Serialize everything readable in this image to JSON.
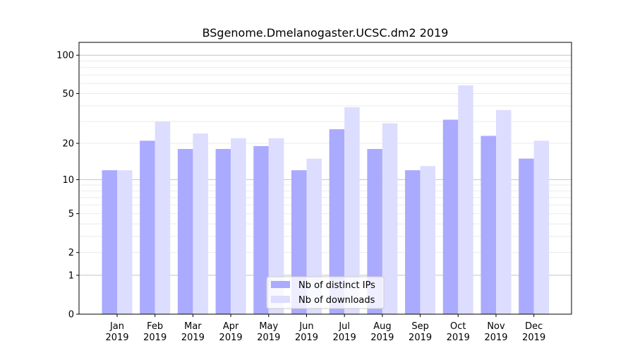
{
  "chart_data": {
    "type": "bar",
    "title": "BSgenome.Dmelanogaster.UCSC.dm2 2019",
    "categories": [
      "Jan 2019",
      "Feb 2019",
      "Mar 2019",
      "Apr 2019",
      "May 2019",
      "Jun 2019",
      "Jul 2019",
      "Aug 2019",
      "Sep 2019",
      "Oct 2019",
      "Nov 2019",
      "Dec 2019"
    ],
    "series": [
      {
        "name": "Nb of distinct IPs",
        "color": "#aaaaff",
        "values": [
          12,
          21,
          18,
          18,
          19,
          12,
          26,
          18,
          12,
          31,
          23,
          15
        ]
      },
      {
        "name": "Nb of downloads",
        "color": "#ddddff",
        "values": [
          12,
          30,
          24,
          22,
          22,
          15,
          39,
          29,
          13,
          58,
          37,
          21
        ]
      }
    ],
    "yscale": "symlog",
    "ylim": [
      0,
      126
    ],
    "yticks": [
      0,
      1,
      2,
      5,
      10,
      20,
      50,
      100
    ],
    "grid": true,
    "legend": "bottom-center",
    "xlabel": "",
    "ylabel": ""
  }
}
